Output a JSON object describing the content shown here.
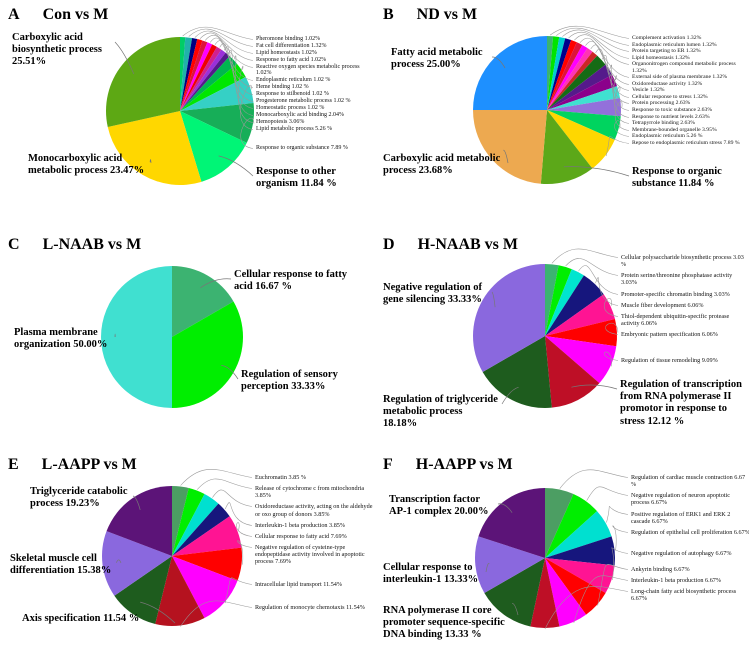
{
  "figure": {
    "background": "#FFFFFF",
    "leader_line_color": "#999999"
  },
  "chart_data": [
    {
      "type": "pie",
      "panel": "A",
      "title": "Con vs M",
      "legend_position": "callout-labels",
      "grid": false,
      "slices": [
        {
          "label": "Pheromone binding",
          "pct": "1.02%",
          "value": 1.02,
          "color": "#00CD66",
          "label_style": "small"
        },
        {
          "label": "Fat cell differentiation",
          "pct": "1.32%",
          "value": 1.32,
          "color": "#20B2AA",
          "label_style": "small"
        },
        {
          "label": "Lipid homeostasis",
          "pct": "1.02%",
          "value": 1.02,
          "color": "#000080",
          "label_style": "small"
        },
        {
          "label": "Response to fatty acid",
          "pct": "1.02%",
          "value": 1.02,
          "color": "#FF0000",
          "label_style": "small"
        },
        {
          "label": "Reactive oxygen species metabolic process",
          "pct": "1.02%",
          "value": 1.02,
          "color": "#DC143C",
          "label_style": "small"
        },
        {
          "label": "Endoplasmic reticulum",
          "pct": "1.02 %",
          "value": 1.02,
          "color": "#FF00FF",
          "label_style": "small"
        },
        {
          "label": "Heme binding",
          "pct": "1.02 %",
          "value": 1.02,
          "color": "#EE0000",
          "label_style": "small"
        },
        {
          "label": "Response to stilbenoid",
          "pct": "1.02 %",
          "value": 1.02,
          "color": "#D02090",
          "label_style": "small"
        },
        {
          "label": "Progesterone metabolic process",
          "pct": "1.02 %",
          "value": 1.02,
          "color": "#9B30D9",
          "label_style": "small"
        },
        {
          "label": "Homeostatic process",
          "pct": "1.02 %",
          "value": 1.02,
          "color": "#551A8B",
          "label_style": "small"
        },
        {
          "label": "Monocarboxylic acid binding",
          "pct": "2.04%",
          "value": 2.04,
          "color": "#00B750",
          "label_style": "small"
        },
        {
          "label": "Hemopoiesis",
          "pct": "3.06%",
          "value": 3.06,
          "color": "#00E700",
          "label_style": "small"
        },
        {
          "label": "Lipid metabolic process",
          "pct": "5.26 %",
          "value": 5.26,
          "color": "#35D0C5",
          "label_style": "small"
        },
        {
          "label": "Response to organic substance",
          "pct": "7.89 %",
          "value": 7.89,
          "color": "#17AE58",
          "label_style": "small"
        },
        {
          "label": "Response to other organism",
          "pct": "11.84 %",
          "value": 11.84,
          "color": "#00F576",
          "label_style": "bold"
        },
        {
          "label": "Monocarboxylic acid metabolic process",
          "pct": "23.47%",
          "value": 23.47,
          "color": "#FFD700",
          "label_style": "bold"
        },
        {
          "label": "Carboxylic acid biosynthetic process",
          "pct": "25.51%",
          "value": 25.51,
          "color": "#5DA814",
          "label_style": "bold"
        }
      ]
    },
    {
      "type": "pie",
      "panel": "B",
      "title": "ND vs M",
      "legend_position": "callout-labels",
      "grid": false,
      "slices": [
        {
          "label": "Complement activation",
          "pct": "1.32%",
          "value": 1.32,
          "color": "#3CB371",
          "label_style": "small"
        },
        {
          "label": "Endoplasmic reticulum lumen",
          "pct": "1.32%",
          "value": 1.32,
          "color": "#00E400",
          "label_style": "small"
        },
        {
          "label": "Protein targeting to ER",
          "pct": "1.32%",
          "value": 1.32,
          "color": "#00CED1",
          "label_style": "small"
        },
        {
          "label": "Lipid homeostasis",
          "pct": "1.32%",
          "value": 1.32,
          "color": "#00008B",
          "label_style": "small"
        },
        {
          "label": "Organonitrogen compound metabolic process",
          "pct": "1.32%",
          "value": 1.32,
          "color": "#FF0000",
          "label_style": "small"
        },
        {
          "label": "External side of plasma membrane",
          "pct": "1.32%",
          "value": 1.32,
          "color": "#DC143C",
          "label_style": "small"
        },
        {
          "label": "Oxidoreductase activity",
          "pct": "1.32%",
          "value": 1.32,
          "color": "#FF00FF",
          "label_style": "small"
        },
        {
          "label": "Vesicle",
          "pct": "1.32%",
          "value": 1.32,
          "color": "#FF34B3",
          "label_style": "small"
        },
        {
          "label": "Cellular response to stress",
          "pct": "1.32%",
          "value": 1.32,
          "color": "#CD2626",
          "label_style": "small"
        },
        {
          "label": "Protein processing",
          "pct": "2.63%",
          "value": 2.63,
          "color": "#156B15",
          "label_style": "small"
        },
        {
          "label": "Response to toxic substance",
          "pct": "2.63%",
          "value": 2.63,
          "color": "#551A8B",
          "label_style": "small"
        },
        {
          "label": "Response to nutrient levels",
          "pct": "2.63%",
          "value": 2.63,
          "color": "#8B008B",
          "label_style": "small"
        },
        {
          "label": "Tetrapyrrole binding",
          "pct": "2.63%",
          "value": 2.63,
          "color": "#40E0D0",
          "label_style": "small"
        },
        {
          "label": "Membrane-bounded organelle",
          "pct": "3.95%",
          "value": 3.95,
          "color": "#9370DB",
          "label_style": "small"
        },
        {
          "label": "Endoplasmic reticulum",
          "pct": "5.26 %",
          "value": 5.26,
          "color": "#00D45F",
          "label_style": "small"
        },
        {
          "label": "Repose to endoplasmic reticulum stress",
          "pct": "7.89 %",
          "value": 7.89,
          "color": "#FFD700",
          "label_style": "small"
        },
        {
          "label": "Response to organic substance",
          "pct": "11.84 %",
          "value": 11.84,
          "color": "#5CA819",
          "label_style": "bold"
        },
        {
          "label": "Carboxylic acid metabolic process",
          "pct": "23.68%",
          "value": 23.68,
          "color": "#EDA950",
          "label_style": "bold"
        },
        {
          "label": "Fatty acid metabolic process",
          "pct": "25.00%",
          "value": 25.0,
          "color": "#1E90FF",
          "label_style": "bold"
        }
      ]
    },
    {
      "type": "pie",
      "panel": "C",
      "title": "L-NAAB vs M",
      "legend_position": "callout-labels",
      "grid": false,
      "slices": [
        {
          "label": "Cellular response to fatty acid",
          "pct": "16.67 %",
          "value": 16.67,
          "color": "#3CB371",
          "label_style": "bold"
        },
        {
          "label": "Regulation of sensory perception",
          "pct": "33.33%",
          "value": 33.33,
          "color": "#00EE00",
          "label_style": "bold"
        },
        {
          "label": "Plasma membrane organization",
          "pct": "50.00%",
          "value": 50.0,
          "color": "#40E0D0",
          "label_style": "bold"
        }
      ]
    },
    {
      "type": "pie",
      "panel": "D",
      "title": "H-NAAB vs M",
      "legend_position": "callout-labels",
      "grid": false,
      "slices": [
        {
          "label": "Cellular polysaccharide biosynthetic process",
          "pct": "3.03 %",
          "value": 3.03,
          "color": "#3CB371",
          "label_style": "small"
        },
        {
          "label": "Protein serine/threonine phosphatase activity",
          "pct": "3.03%",
          "value": 3.03,
          "color": "#00EE00",
          "label_style": "small"
        },
        {
          "label": "Promoter-specific chromatin binding",
          "pct": "3.03%",
          "value": 3.03,
          "color": "#00E5CF",
          "label_style": "small"
        },
        {
          "label": "Muscle fiber development",
          "pct": "6.06%",
          "value": 6.06,
          "color": "#16167D",
          "label_style": "small"
        },
        {
          "label": "Thiol-dependent ubiquitin-specific protease activity",
          "pct": "6.06%",
          "value": 6.06,
          "color": "#FF1493",
          "label_style": "small"
        },
        {
          "label": "Embryonic pattern specification",
          "pct": "6.06%",
          "value": 6.06,
          "color": "#FF0000",
          "label_style": "small"
        },
        {
          "label": "Regulation of tissue remodeling",
          "pct": "9.09%",
          "value": 9.09,
          "color": "#FF00FF",
          "label_style": "small"
        },
        {
          "label": "Regulation of transcription from RNA polymerase II promotor in response to stress",
          "pct": "12.12 %",
          "value": 12.12,
          "color": "#BE0F26",
          "label_style": "bold"
        },
        {
          "label": "Regulation of triglyceride metabolic process",
          "pct": "18.18%",
          "value": 18.18,
          "color": "#1E5C1E",
          "label_style": "bold"
        },
        {
          "label": "Negative regulation of gene silencing",
          "pct": "33.33%",
          "value": 33.33,
          "color": "#8A68DE",
          "label_style": "bold"
        }
      ]
    },
    {
      "type": "pie",
      "panel": "E",
      "title": "L-AAPP vs M",
      "legend_position": "callout-labels",
      "grid": false,
      "slices": [
        {
          "label": "Euchromatin",
          "pct": "3.85 %",
          "value": 3.85,
          "color": "#4C9E63",
          "label_style": "small"
        },
        {
          "label": "Release of cytochrome c from mitochondria",
          "pct": "3.85%",
          "value": 3.85,
          "color": "#00EE00",
          "label_style": "small"
        },
        {
          "label": "Oxidoreductase activity, acting on the aldehyde or oxo group of donors",
          "pct": "3.85%",
          "value": 3.85,
          "color": "#00E0D0",
          "label_style": "small"
        },
        {
          "label": "Interleukin-1 beta production",
          "pct": "3.85%",
          "value": 3.85,
          "color": "#16167D",
          "label_style": "small"
        },
        {
          "label": "Cellular response to fatty acid",
          "pct": "7.69%",
          "value": 7.69,
          "color": "#FF1493",
          "label_style": "small"
        },
        {
          "label": "Negative regulation of cysteine-type endopeptidase activity involved in apoptotic process",
          "pct": "7.69%",
          "value": 7.69,
          "color": "#FF0000",
          "label_style": "small"
        },
        {
          "label": "Intracellular lipid transport",
          "pct": "11.54%",
          "value": 11.54,
          "color": "#FF00FF",
          "label_style": "small"
        },
        {
          "label": "Regulation of monocyte chemotaxis",
          "pct": "11.54%",
          "value": 11.54,
          "color": "#B5121F",
          "label_style": "small"
        },
        {
          "label": "Axis specification",
          "pct": "11.54 %",
          "value": 11.54,
          "color": "#1E5C1E",
          "label_style": "bold"
        },
        {
          "label": "Skeletal muscle cell differentiation",
          "pct": "15.38%",
          "value": 15.38,
          "color": "#8A68DE",
          "label_style": "bold"
        },
        {
          "label": "Triglyceride catabolic process",
          "pct": "19.23%",
          "value": 19.23,
          "color": "#5C1478",
          "label_style": "bold"
        }
      ]
    },
    {
      "type": "pie",
      "panel": "F",
      "title": "H-AAPP vs M",
      "legend_position": "callout-labels",
      "grid": false,
      "slices": [
        {
          "label": "Regulation of cardiac muscle contraction",
          "pct": "6.67 %",
          "value": 6.67,
          "color": "#4C9E63",
          "label_style": "small"
        },
        {
          "label": "Negative regulation of neuron apoptotic process",
          "pct": "6.67%",
          "value": 6.67,
          "color": "#00EE00",
          "label_style": "small"
        },
        {
          "label": "Positive regulation of ERK1 and ERK 2 cascade",
          "pct": "6.67%",
          "value": 6.67,
          "color": "#00E0D0",
          "label_style": "small"
        },
        {
          "label": "Regulation of epithelial cell proliferation",
          "pct": "6.67%",
          "value": 6.67,
          "color": "#16167D",
          "label_style": "small"
        },
        {
          "label": "Negative regulation of autophagy",
          "pct": "6.67%",
          "value": 6.67,
          "color": "#FF1493",
          "label_style": "small"
        },
        {
          "label": "Ankyrin binding",
          "pct": "6.67%",
          "value": 6.67,
          "color": "#FF0000",
          "label_style": "small"
        },
        {
          "label": "Interleukin-1 beta production",
          "pct": "6.67%",
          "value": 6.67,
          "color": "#FF00FF",
          "label_style": "small"
        },
        {
          "label": "Long-chain fatty acid biosynthetic process",
          "pct": "6.67%",
          "value": 6.67,
          "color": "#BE0F26",
          "label_style": "small"
        },
        {
          "label": "RNA polymerase II core promoter sequence-specific DNA binding",
          "pct": "13.33 %",
          "value": 13.33,
          "color": "#1E5C1E",
          "label_style": "bold"
        },
        {
          "label": "Cellular response to interleukin-1",
          "pct": "13.33%",
          "value": 13.33,
          "color": "#8A68DE",
          "label_style": "bold"
        },
        {
          "label": "Transcription factor AP-1 complex",
          "pct": "20.00%",
          "value": 20.0,
          "color": "#5C1478",
          "label_style": "bold"
        }
      ]
    }
  ]
}
